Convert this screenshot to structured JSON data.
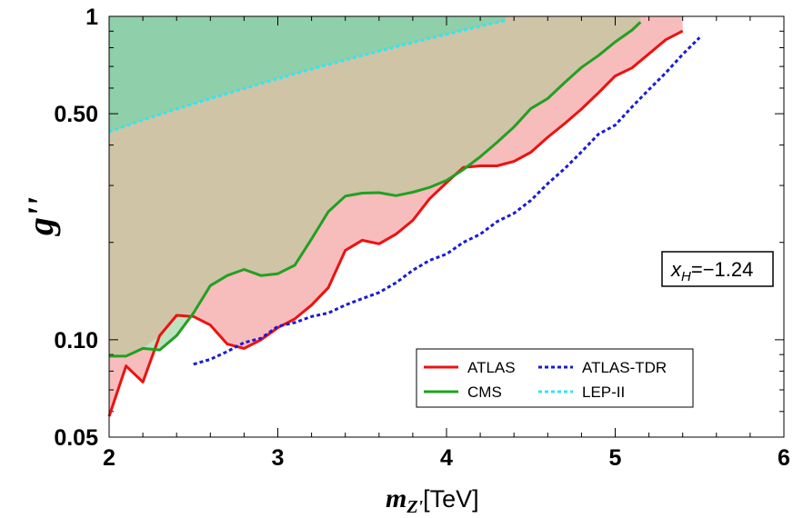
{
  "chart_data": {
    "type": "area",
    "xlabel_main": "m",
    "xlabel_sub": "Z'",
    "xlabel_unit": "[TeV]",
    "ylabel": "g''",
    "xlim": [
      2,
      6
    ],
    "ylim": [
      0.05,
      1
    ],
    "yscale": "log",
    "x_ticks": [
      "2",
      "3",
      "4",
      "5",
      "6"
    ],
    "y_ticks": [
      {
        "value": 0.05,
        "label": "0.05"
      },
      {
        "value": 0.1,
        "label": "0.10"
      },
      {
        "value": 0.5,
        "label": "0.50"
      },
      {
        "value": 1,
        "label": "1"
      }
    ],
    "annotation": "x_H=−1.24",
    "annotation_base": "x",
    "annotation_sub": "H",
    "annotation_rest": "=−1.24",
    "legend_position": "bottom-right",
    "series": [
      {
        "name": "ATLAS",
        "color": "#ee1111",
        "fill": "#f7bcbc",
        "dash": "solid",
        "x": [
          2.0,
          2.1,
          2.2,
          2.3,
          2.4,
          2.5,
          2.6,
          2.7,
          2.8,
          2.9,
          3.0,
          3.1,
          3.2,
          3.3,
          3.4,
          3.5,
          3.6,
          3.7,
          3.8,
          3.9,
          4.0,
          4.1,
          4.2,
          4.3,
          4.4,
          4.5,
          4.6,
          4.7,
          4.8,
          4.9,
          5.0,
          5.1,
          5.2,
          5.3,
          5.4
        ],
        "y": [
          0.058,
          0.083,
          0.074,
          0.103,
          0.119,
          0.118,
          0.111,
          0.097,
          0.094,
          0.1,
          0.109,
          0.116,
          0.128,
          0.145,
          0.189,
          0.203,
          0.198,
          0.212,
          0.234,
          0.273,
          0.306,
          0.341,
          0.345,
          0.345,
          0.356,
          0.38,
          0.423,
          0.466,
          0.517,
          0.58,
          0.654,
          0.693,
          0.766,
          0.847,
          0.901
        ]
      },
      {
        "name": "CMS",
        "color": "#22a022",
        "fill": "#bfe3bf",
        "dash": "solid",
        "x": [
          2.0,
          2.1,
          2.2,
          2.3,
          2.4,
          2.5,
          2.6,
          2.7,
          2.8,
          2.9,
          3.0,
          3.1,
          3.2,
          3.3,
          3.4,
          3.5,
          3.6,
          3.7,
          3.8,
          3.9,
          4.0,
          4.1,
          4.2,
          4.3,
          4.4,
          4.5,
          4.6,
          4.7,
          4.8,
          4.9,
          5.0,
          5.1,
          5.15
        ],
        "y": [
          0.089,
          0.089,
          0.094,
          0.093,
          0.103,
          0.121,
          0.147,
          0.158,
          0.165,
          0.158,
          0.16,
          0.17,
          0.205,
          0.249,
          0.278,
          0.284,
          0.285,
          0.279,
          0.286,
          0.296,
          0.311,
          0.336,
          0.368,
          0.408,
          0.455,
          0.519,
          0.557,
          0.624,
          0.695,
          0.756,
          0.834,
          0.907,
          0.96
        ]
      },
      {
        "name": "ATLAS-TDR",
        "color": "#1a1ad6",
        "dash": "dotted",
        "x": [
          2.5,
          2.6,
          2.7,
          2.8,
          2.9,
          3.0,
          3.1,
          3.2,
          3.3,
          3.4,
          3.5,
          3.6,
          3.7,
          3.8,
          3.9,
          4.0,
          4.1,
          4.2,
          4.3,
          4.4,
          4.5,
          4.6,
          4.7,
          4.8,
          4.9,
          5.0,
          5.1,
          5.2,
          5.3,
          5.4,
          5.5
        ],
        "y": [
          0.084,
          0.087,
          0.092,
          0.098,
          0.101,
          0.11,
          0.113,
          0.118,
          0.121,
          0.128,
          0.134,
          0.14,
          0.15,
          0.164,
          0.176,
          0.184,
          0.2,
          0.212,
          0.232,
          0.246,
          0.27,
          0.304,
          0.338,
          0.381,
          0.432,
          0.461,
          0.525,
          0.594,
          0.669,
          0.763,
          0.86
        ]
      },
      {
        "name": "LEP-II",
        "color": "#33e5f0",
        "dash": "dotted",
        "fill": "#8fcfa9",
        "x": [
          2.0,
          2.2,
          2.4,
          2.6,
          2.8,
          3.0,
          3.2,
          3.4,
          3.6,
          3.8,
          4.0,
          4.2,
          4.35
        ],
        "y": [
          0.44,
          0.478,
          0.517,
          0.557,
          0.598,
          0.642,
          0.687,
          0.733,
          0.781,
          0.83,
          0.88,
          0.932,
          0.97
        ]
      }
    ]
  }
}
